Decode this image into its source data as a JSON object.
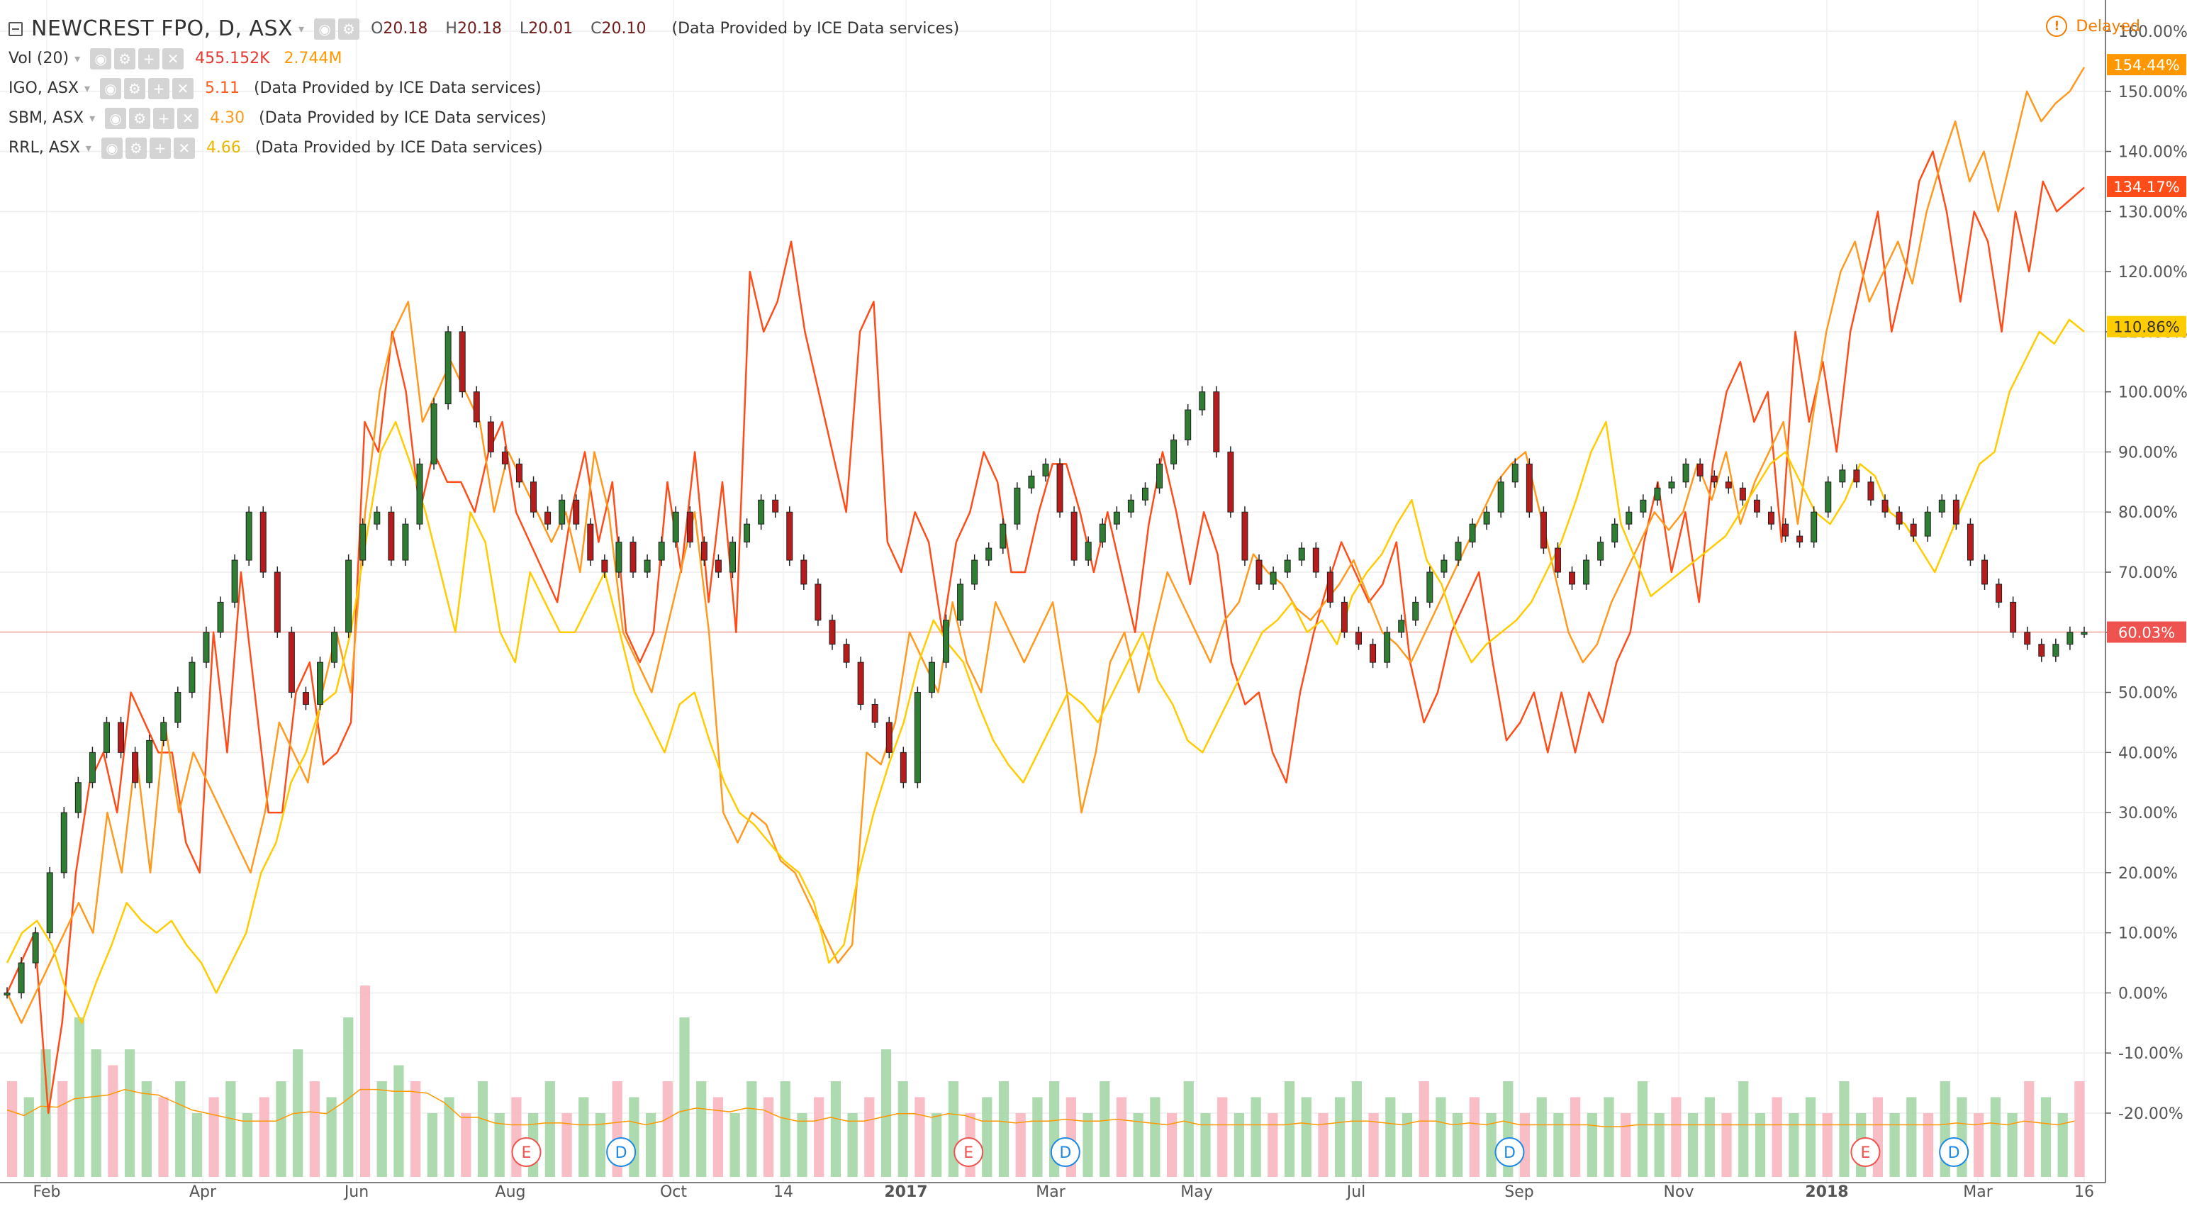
{
  "legend": {
    "main": {
      "symbol": "NEWCREST FPO, D, ASX",
      "o_label": "O",
      "o": "20.18",
      "h_label": "H",
      "h": "20.18",
      "l_label": "L",
      "l": "20.01",
      "c_label": "C",
      "c": "20.10",
      "note": "(Data Provided by ICE Data services)"
    },
    "volume": {
      "label": "Vol (20)",
      "value": "455.152K",
      "ma": "2.744M",
      "value_color": "#e53935",
      "ma_color": "#ff9800"
    },
    "compare": [
      {
        "label": "IGO, ASX",
        "value": "5.11",
        "note": "(Data Provided by ICE Data services)",
        "color": "#ff5a1f"
      },
      {
        "label": "SBM, ASX",
        "value": "4.30",
        "note": "(Data Provided by ICE Data services)",
        "color": "#ff9a1f"
      },
      {
        "label": "RRL, ASX",
        "value": "4.66",
        "note": "(Data Provided by ICE Data services)",
        "color": "#f7d000"
      }
    ]
  },
  "status": {
    "delayed": "Delayed",
    "icon": "alert-circle-icon"
  },
  "chart_data": {
    "type": "line",
    "y_axis": {
      "unit": "%",
      "ticks": [
        "160.00%",
        "150.00%",
        "140.00%",
        "130.00%",
        "120.00%",
        "110.00%",
        "100.00%",
        "90.00%",
        "80.00%",
        "70.00%",
        "60.00%",
        "50.00%",
        "40.00%",
        "30.00%",
        "20.00%",
        "10.00%",
        "0.00%",
        "-10.00%",
        "-20.00%"
      ],
      "min": -30,
      "max": 162
    },
    "x_axis": {
      "labels": [
        "Feb",
        "Apr",
        "Jun",
        "Aug",
        "Oct",
        "14",
        "2017",
        "Mar",
        "May",
        "Jul",
        "Sep",
        "Nov",
        "2018",
        "Mar",
        "16"
      ]
    },
    "price_line": {
      "label": "60.03%",
      "value": 60.03,
      "color": "#f4a7a0"
    },
    "last_value_tags": [
      {
        "label": "154.44%",
        "value": 154.44,
        "color": "#ff9800"
      },
      {
        "label": "134.17%",
        "value": 134.17,
        "color": "#ff4d1a"
      },
      {
        "label": "110.86%",
        "value": 110.86,
        "color": "#ffcc00"
      },
      {
        "label": "60.03%",
        "value": 60.03,
        "color": "#ef5350"
      }
    ],
    "series": [
      {
        "name": "IGO, ASX",
        "color": "#ff4d1a",
        "values": [
          0,
          5,
          10,
          -20,
          -5,
          20,
          35,
          40,
          30,
          50,
          45,
          40,
          40,
          25,
          20,
          60,
          40,
          70,
          50,
          30,
          30,
          50,
          55,
          38,
          40,
          45,
          95,
          90,
          110,
          100,
          80,
          90,
          85,
          85,
          80,
          90,
          95,
          80,
          75,
          70,
          65,
          80,
          90,
          75,
          85,
          60,
          55,
          60,
          85,
          70,
          90,
          65,
          85,
          60,
          120,
          110,
          115,
          125,
          110,
          100,
          90,
          80,
          110,
          115,
          75,
          70,
          80,
          75,
          60,
          75,
          80,
          90,
          85,
          70,
          70,
          80,
          88,
          88,
          80,
          70,
          80,
          70,
          60,
          78,
          90,
          80,
          68,
          80,
          73,
          55,
          48,
          50,
          40,
          35,
          50,
          60,
          68,
          75,
          70,
          65,
          68,
          75,
          55,
          45,
          50,
          60,
          65,
          70,
          55,
          42,
          45,
          50,
          40,
          50,
          40,
          50,
          45,
          55,
          60,
          75,
          85,
          70,
          80,
          65,
          88,
          100,
          105,
          95,
          100,
          75,
          110,
          95,
          105,
          90,
          110,
          120,
          130,
          110,
          120,
          135,
          140,
          130,
          115,
          130,
          125,
          110,
          130,
          120,
          135,
          130,
          132,
          134
        ]
      },
      {
        "name": "SBM, ASX",
        "color": "#ff9a1f",
        "values": [
          0,
          -5,
          0,
          5,
          10,
          15,
          10,
          30,
          20,
          40,
          20,
          45,
          30,
          40,
          35,
          30,
          25,
          20,
          30,
          45,
          40,
          35,
          50,
          60,
          50,
          80,
          100,
          110,
          115,
          95,
          100,
          105,
          100,
          95,
          80,
          90,
          85,
          80,
          75,
          80,
          70,
          90,
          80,
          60,
          55,
          50,
          60,
          70,
          80,
          60,
          30,
          25,
          30,
          28,
          22,
          20,
          15,
          10,
          5,
          8,
          40,
          38,
          45,
          60,
          55,
          50,
          65,
          55,
          50,
          65,
          60,
          55,
          60,
          65,
          50,
          30,
          40,
          55,
          60,
          50,
          60,
          70,
          65,
          60,
          55,
          62,
          65,
          73,
          70,
          68,
          64,
          62,
          65,
          68,
          72,
          66,
          60,
          58,
          55,
          60,
          65,
          70,
          75,
          80,
          85,
          88,
          90,
          80,
          70,
          60,
          55,
          58,
          65,
          70,
          75,
          80,
          77,
          80,
          88,
          82,
          90,
          78,
          85,
          90,
          95,
          78,
          95,
          110,
          120,
          125,
          115,
          120,
          125,
          118,
          130,
          138,
          145,
          135,
          140,
          130,
          140,
          150,
          145,
          148,
          150,
          154
        ]
      },
      {
        "name": "RRL, ASX",
        "color": "#ffcc00",
        "values": [
          5,
          10,
          12,
          8,
          0,
          -5,
          2,
          8,
          15,
          12,
          10,
          12,
          8,
          5,
          0,
          5,
          10,
          20,
          25,
          35,
          40,
          48,
          50,
          60,
          75,
          90,
          95,
          88,
          80,
          70,
          60,
          80,
          75,
          60,
          55,
          70,
          65,
          60,
          60,
          65,
          70,
          60,
          50,
          45,
          40,
          48,
          50,
          42,
          35,
          30,
          28,
          25,
          22,
          20,
          15,
          5,
          8,
          20,
          30,
          38,
          45,
          55,
          62,
          58,
          55,
          48,
          42,
          38,
          35,
          40,
          45,
          50,
          48,
          45,
          50,
          55,
          60,
          52,
          48,
          42,
          40,
          45,
          50,
          55,
          60,
          62,
          65,
          60,
          62,
          58,
          66,
          70,
          73,
          78,
          82,
          72,
          68,
          60,
          55,
          58,
          60,
          62,
          65,
          70,
          75,
          82,
          90,
          95,
          78,
          72,
          66,
          68,
          70,
          72,
          74,
          76,
          80,
          84,
          88,
          90,
          85,
          80,
          78,
          82,
          88,
          86,
          80,
          78,
          74,
          70,
          76,
          82,
          88,
          90,
          100,
          105,
          110,
          108,
          112,
          110
        ]
      },
      {
        "name": "NEWCREST FPO, D, ASX",
        "color": "#333333",
        "style": "candles",
        "values": [
          0,
          5,
          10,
          20,
          30,
          35,
          40,
          45,
          40,
          35,
          42,
          45,
          50,
          55,
          60,
          65,
          72,
          80,
          70,
          60,
          50,
          48,
          55,
          60,
          72,
          78,
          80,
          72,
          78,
          88,
          98,
          110,
          100,
          95,
          90,
          88,
          85,
          80,
          78,
          82,
          78,
          72,
          70,
          75,
          70,
          72,
          75,
          80,
          75,
          72,
          70,
          75,
          78,
          82,
          80,
          72,
          68,
          62,
          58,
          55,
          48,
          45,
          40,
          35,
          50,
          55,
          62,
          68,
          72,
          74,
          78,
          84,
          86,
          88,
          80,
          72,
          75,
          78,
          80,
          82,
          84,
          88,
          92,
          97,
          100,
          90,
          80,
          72,
          68,
          70,
          72,
          74,
          70,
          65,
          60,
          58,
          55,
          60,
          62,
          65,
          70,
          72,
          75,
          78,
          80,
          85,
          88,
          80,
          74,
          70,
          68,
          72,
          75,
          78,
          80,
          82,
          84,
          85,
          88,
          86,
          85,
          84,
          82,
          80,
          78,
          76,
          75,
          80,
          85,
          87,
          85,
          82,
          80,
          78,
          76,
          80,
          82,
          78,
          72,
          68,
          65,
          60,
          58,
          56,
          58,
          60,
          60
        ]
      },
      {
        "name": "Vol (20)",
        "type": "bar",
        "color": "#a5d6a7",
        "values": [
          3,
          2.5,
          4,
          3,
          5,
          4,
          3.5,
          4,
          3,
          2.5,
          3,
          2,
          2.5,
          3,
          2,
          2.5,
          3,
          4,
          3,
          2.5,
          5,
          6,
          3,
          3.5,
          3,
          2,
          2.5,
          2,
          3,
          2,
          2.5,
          2,
          3,
          2,
          2.5,
          2,
          3,
          2.5,
          2,
          3,
          5,
          3,
          2.5,
          2,
          3,
          2.5,
          3,
          2,
          2.5,
          3,
          2,
          2.5,
          4,
          3,
          2.5,
          2,
          3,
          2,
          2.5,
          3,
          2,
          2.5,
          3,
          2.5,
          2,
          3,
          2.5,
          2,
          2.5,
          2,
          3,
          2,
          2.5,
          2,
          2.5,
          2,
          3,
          2.5,
          2,
          2.5,
          3,
          2,
          2.5,
          2,
          3,
          2.5,
          2,
          2.5,
          2,
          3,
          2,
          2.5,
          2,
          2.5,
          2,
          2.5,
          2,
          3,
          2,
          2.5,
          2,
          2.5,
          2,
          3,
          2,
          2.5,
          2,
          2.5,
          2,
          3,
          2,
          2.5,
          2,
          2.5,
          2,
          3,
          2.5,
          2,
          2.5,
          2,
          3,
          2.5,
          2,
          3
        ]
      }
    ],
    "events": [
      {
        "label": "E",
        "x_index": 0.25
      },
      {
        "label": "D",
        "x_index": 0.295
      },
      {
        "label": "E",
        "x_index": 0.46
      },
      {
        "label": "D",
        "x_index": 0.506
      },
      {
        "label": "D",
        "x_index": 0.717
      },
      {
        "label": "E",
        "x_index": 0.886
      },
      {
        "label": "D",
        "x_index": 0.928
      }
    ]
  }
}
